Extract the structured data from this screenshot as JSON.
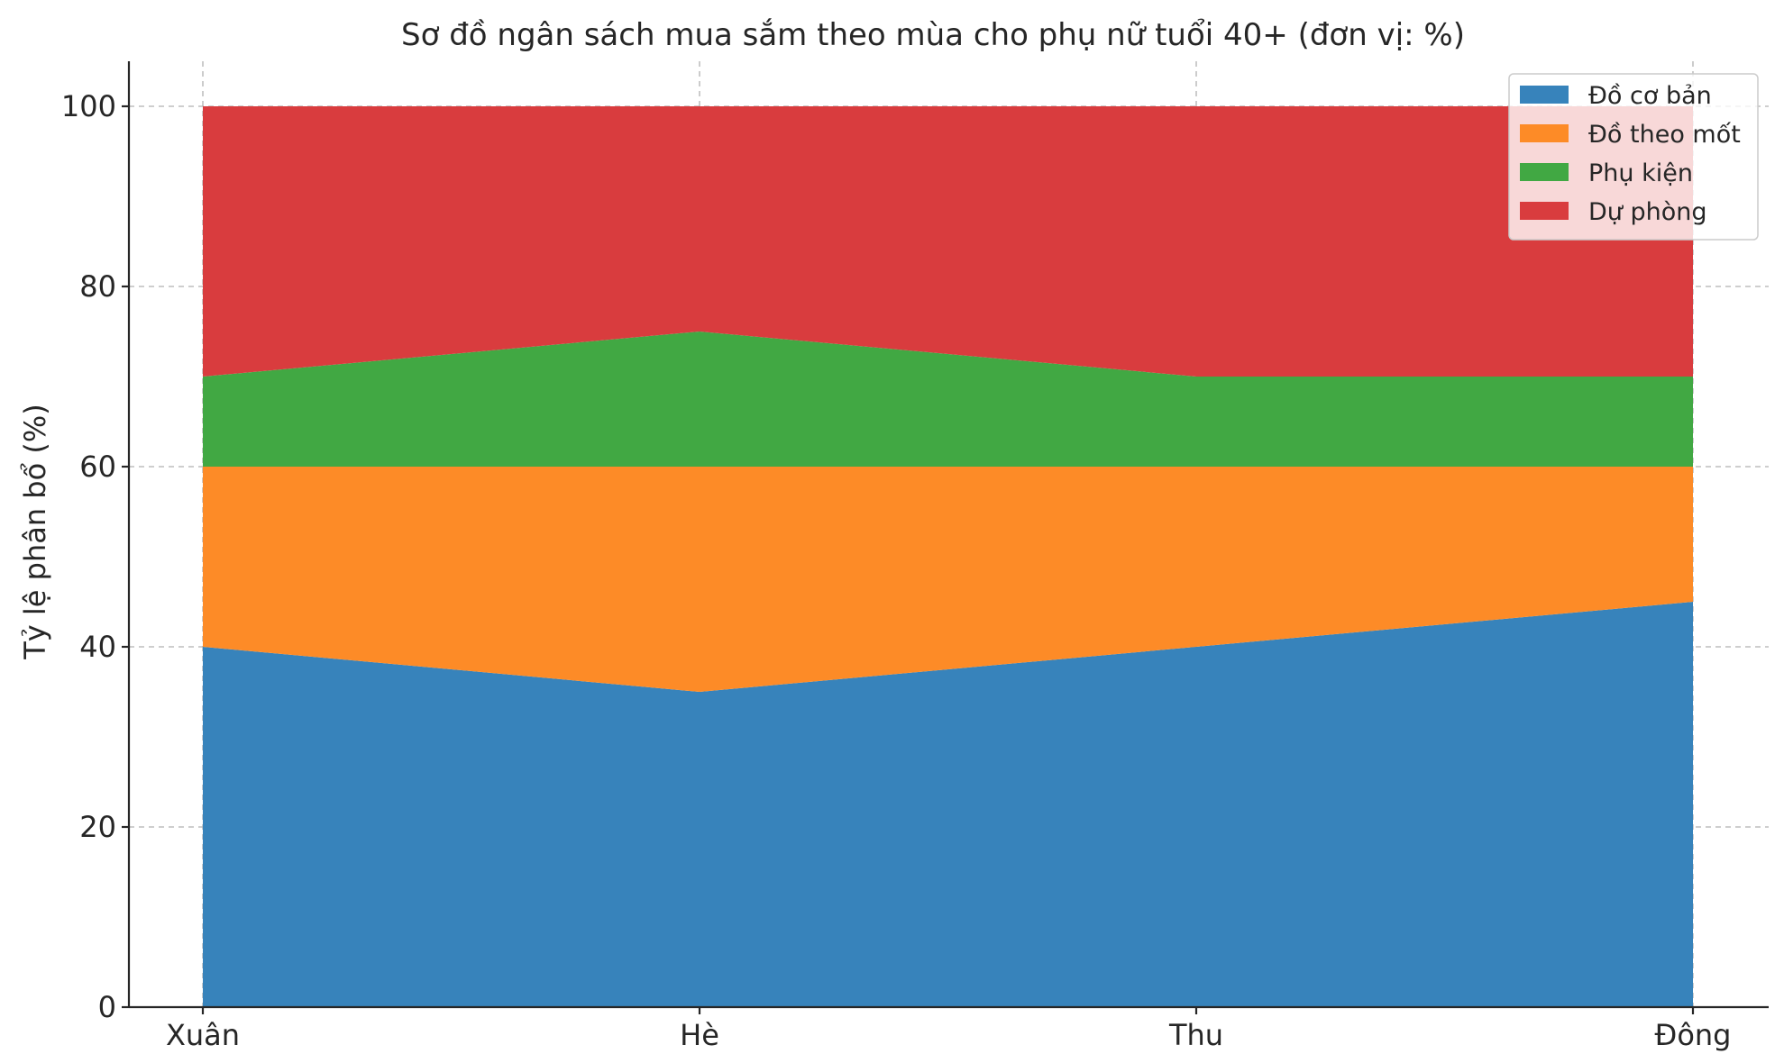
{
  "chart_data": {
    "type": "area",
    "stacked": true,
    "title": "Sơ đồ ngân sách mua sắm theo mùa cho phụ nữ tuổi 40+ (đơn vị: %)",
    "xlabel": "",
    "ylabel": "Tỷ lệ phân bổ (%)",
    "categories": [
      "Xuân",
      "Hè",
      "Thu",
      "Đông"
    ],
    "ylim": [
      0,
      105
    ],
    "yticks": [
      0,
      20,
      40,
      60,
      80,
      100
    ],
    "grid": true,
    "legend_position": "top-right",
    "series": [
      {
        "name": "Đồ cơ bản",
        "values": [
          40,
          35,
          40,
          45
        ],
        "color": "#3783bb"
      },
      {
        "name": "Đồ theo mốt",
        "values": [
          20,
          25,
          20,
          15
        ],
        "color": "#fd8b27"
      },
      {
        "name": "Phụ kiện",
        "values": [
          10,
          15,
          10,
          10
        ],
        "color": "#41a843"
      },
      {
        "name": "Dự phòng",
        "values": [
          30,
          25,
          30,
          30
        ],
        "color": "#d93c3e"
      }
    ]
  }
}
